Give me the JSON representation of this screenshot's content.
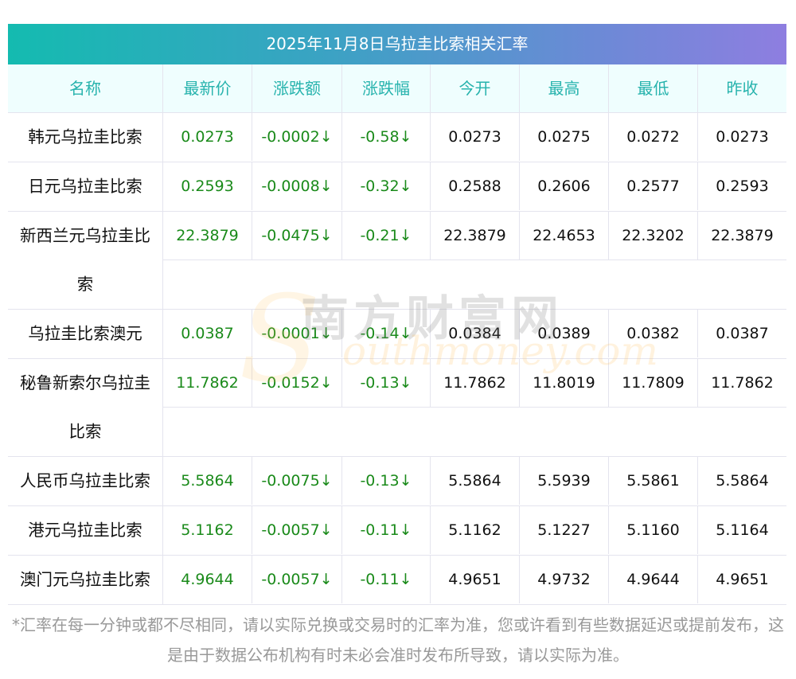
{
  "title": "2025年11月8日乌拉圭比索相关汇率",
  "columns": [
    "名称",
    "最新价",
    "涨跌额",
    "涨跌幅",
    "今开",
    "最高",
    "最低",
    "昨收"
  ],
  "rows": [
    {
      "name": "韩元乌拉圭比索",
      "values": [
        "0.0273",
        "-0.0002↓",
        "-0.58↓",
        "0.0273",
        "0.0275",
        "0.0272",
        "0.0273"
      ]
    },
    {
      "name": "日元乌拉圭比索",
      "values": [
        "0.2593",
        "-0.0008↓",
        "-0.32↓",
        "0.2588",
        "0.2606",
        "0.2577",
        "0.2593"
      ]
    },
    {
      "name": "新西兰元乌拉圭比索",
      "values": [
        "22.3879",
        "-0.0475↓",
        "-0.21↓",
        "22.3879",
        "22.4653",
        "22.3202",
        "22.3879"
      ]
    },
    {
      "name": "乌拉圭比索澳元",
      "values": [
        "0.0387",
        "-0.0001↓",
        "-0.14↓",
        "0.0384",
        "0.0389",
        "0.0382",
        "0.0387"
      ]
    },
    {
      "name": "秘鲁新索尔乌拉圭比索",
      "values": [
        "11.7862",
        "-0.0152↓",
        "-0.13↓",
        "11.7862",
        "11.8019",
        "11.7809",
        "11.7862"
      ]
    },
    {
      "name": "人民币乌拉圭比索",
      "values": [
        "5.5864",
        "-0.0075↓",
        "-0.13↓",
        "5.5864",
        "5.5939",
        "5.5861",
        "5.5864"
      ]
    },
    {
      "name": "港元乌拉圭比索",
      "values": [
        "5.1162",
        "-0.0057↓",
        "-0.11↓",
        "5.1162",
        "5.1227",
        "5.1160",
        "5.1164"
      ]
    },
    {
      "name": "澳门元乌拉圭比索",
      "values": [
        "4.9644",
        "-0.0057↓",
        "-0.11↓",
        "4.9651",
        "4.9732",
        "4.9644",
        "4.9651"
      ]
    }
  ],
  "watermark": {
    "cn": "南方财富网",
    "en": "Southmoney.com"
  },
  "note": "*汇率在每一分钟或都不尽相同，请以实际兑换或交易时的汇率为准，您或许看到有些数据延迟或提前发布，这是由于数据公布机构有时未必会准时发布所导致，请以实际为准。",
  "colors": {
    "up_down": "#1a8a1a",
    "header_text": "#27b3ad"
  }
}
